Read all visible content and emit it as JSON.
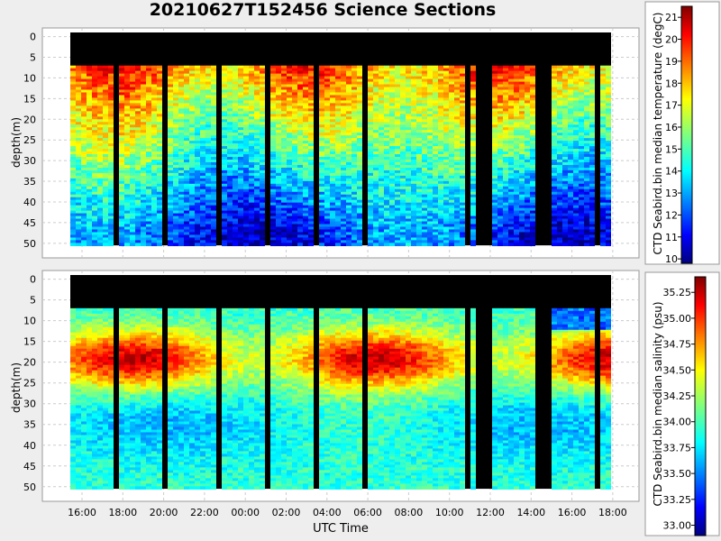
{
  "chart_data": [
    {
      "type": "heatmap",
      "panel": "top",
      "title": "20210627T152456 Science Sections",
      "xlabel": "",
      "ylabel": "depth(m)",
      "x_ticks": [
        "16:00",
        "18:00",
        "20:00",
        "22:00",
        "00:00",
        "02:00",
        "04:00",
        "06:00",
        "08:00",
        "10:00",
        "12:00",
        "14:00",
        "16:00",
        "18:00"
      ],
      "y_ticks": [
        0,
        5,
        10,
        15,
        20,
        25,
        30,
        35,
        40,
        45,
        50
      ],
      "ylim": [
        52,
        -1
      ],
      "colorbar": {
        "label": "CTD Seabird.bin median temperature (degC)",
        "range": [
          9.8,
          21.5
        ],
        "ticks": [
          10,
          11,
          12,
          13,
          14,
          15,
          16,
          17,
          18,
          19,
          20,
          21
        ]
      },
      "description_values": {
        "surface_warm_layer_depth_m": [
          8,
          20
        ],
        "surface_temp_degC": [
          17,
          20
        ],
        "deep_temp_degC": [
          10.5,
          14
        ]
      }
    },
    {
      "type": "heatmap",
      "panel": "bottom",
      "xlabel": "UTC Time",
      "ylabel": "depth(m)",
      "x_ticks": [
        "16:00",
        "18:00",
        "20:00",
        "22:00",
        "00:00",
        "02:00",
        "04:00",
        "06:00",
        "08:00",
        "10:00",
        "12:00",
        "14:00",
        "16:00",
        "18:00"
      ],
      "y_ticks": [
        0,
        5,
        10,
        15,
        20,
        25,
        30,
        35,
        40,
        45,
        50
      ],
      "ylim": [
        52,
        -1
      ],
      "colorbar": {
        "label": "CTD Seabird.bin median salinity (psu)",
        "range": [
          32.9,
          35.4
        ],
        "ticks": [
          "33.00",
          "33.25",
          "33.50",
          "33.75",
          "34.00",
          "34.25",
          "34.50",
          "34.75",
          "35.00",
          "35.25"
        ]
      },
      "description_values": {
        "high_salinity_core_depth_m": [
          15,
          25
        ],
        "max_salinity_psu": 35.0
      }
    }
  ],
  "colors": {
    "background": "#eeeeee",
    "plot_background": "#ffffff",
    "grid": "#cccccc",
    "no_data": "#000000"
  }
}
